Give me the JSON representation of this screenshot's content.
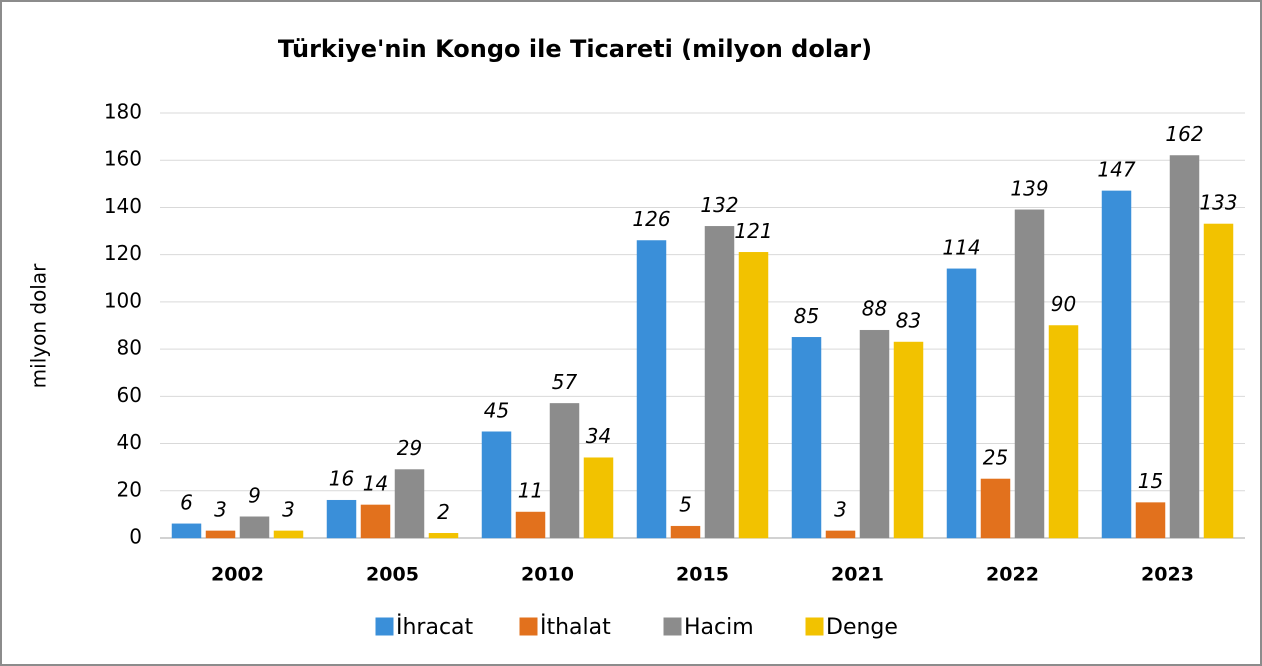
{
  "chart_data": {
    "type": "bar",
    "title": "Türkiye'nin Kongo ile Ticareti (milyon dolar)",
    "y_label": "milyon dolar",
    "categories": [
      "2002",
      "2005",
      "2010",
      "2015",
      "2021",
      "2022",
      "2023"
    ],
    "series": [
      {
        "name": "İhracat",
        "color": "#3a8fd9",
        "values": [
          6,
          16,
          45,
          126,
          85,
          114,
          147
        ]
      },
      {
        "name": "İthalat",
        "color": "#e2711d",
        "values": [
          3,
          14,
          11,
          5,
          3,
          25,
          15
        ]
      },
      {
        "name": "Hacim",
        "color": "#8c8c8c",
        "values": [
          9,
          29,
          57,
          132,
          88,
          139,
          162
        ]
      },
      {
        "name": "Denge",
        "color": "#f2c200",
        "values": [
          3,
          2,
          34,
          121,
          83,
          90,
          133
        ]
      }
    ],
    "ylim": [
      0,
      180
    ],
    "yticks": [
      0,
      20,
      40,
      60,
      80,
      100,
      120,
      140,
      160,
      180
    ],
    "grid": true,
    "legend": "bottom"
  }
}
